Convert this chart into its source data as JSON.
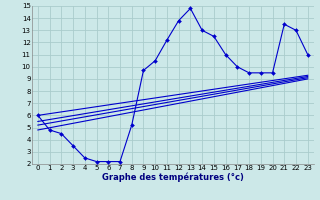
{
  "xlabel": "Graphe des températures (°c)",
  "background_color": "#cce8e8",
  "grid_color": "#aacccc",
  "line_color": "#0000cc",
  "xlim": [
    -0.5,
    23.5
  ],
  "ylim": [
    2,
    15
  ],
  "xticks": [
    0,
    1,
    2,
    3,
    4,
    5,
    6,
    7,
    8,
    9,
    10,
    11,
    12,
    13,
    14,
    15,
    16,
    17,
    18,
    19,
    20,
    21,
    22,
    23
  ],
  "yticks": [
    2,
    3,
    4,
    5,
    6,
    7,
    8,
    9,
    10,
    11,
    12,
    13,
    14,
    15
  ],
  "main_curve": [
    6.0,
    4.8,
    4.5,
    3.5,
    2.5,
    2.2,
    2.2,
    2.2,
    5.2,
    9.7,
    10.5,
    12.2,
    13.8,
    14.8,
    13.0,
    12.5,
    11.0,
    10.0,
    9.5,
    9.5,
    9.5,
    13.5,
    13.0,
    11.0
  ],
  "regression_lines": [
    {
      "x0": 0,
      "y0": 6.0,
      "x1": 23,
      "y1": 9.3
    },
    {
      "x0": 0,
      "y0": 5.5,
      "x1": 23,
      "y1": 9.2
    },
    {
      "x0": 0,
      "y0": 5.2,
      "x1": 23,
      "y1": 9.1
    },
    {
      "x0": 0,
      "y0": 4.8,
      "x1": 23,
      "y1": 9.0
    }
  ]
}
